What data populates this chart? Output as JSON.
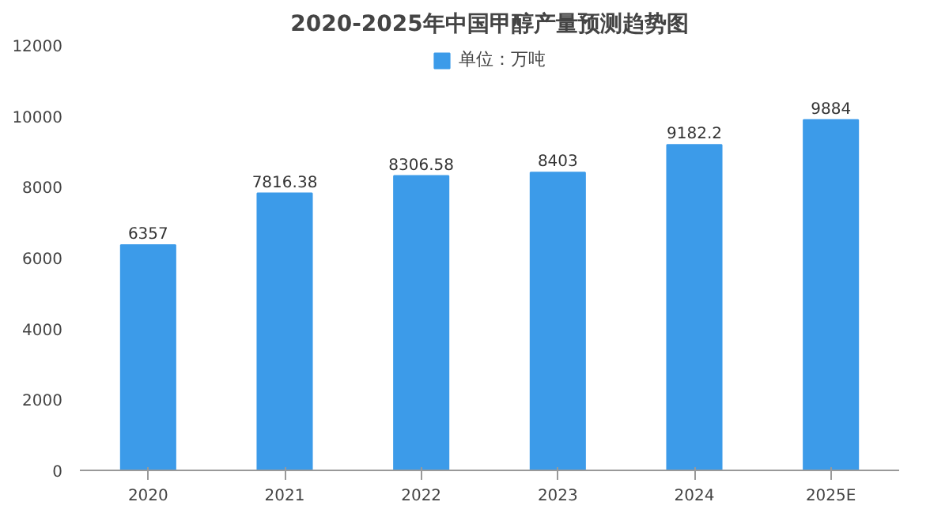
{
  "chart_data": {
    "type": "bar",
    "title": "2020-2025年中国甲醇产量预测趋势图",
    "categories": [
      "2020",
      "2021",
      "2022",
      "2023",
      "2024",
      "2025E"
    ],
    "series": [
      {
        "name": "单位：万吨",
        "color": "#3c9be9",
        "values": [
          6357,
          7816.38,
          8306.58,
          8403,
          9182.2,
          9884
        ]
      }
    ],
    "ylim": [
      0,
      12000
    ],
    "yticks": [
      0,
      2000,
      4000,
      6000,
      8000,
      10000,
      12000
    ],
    "data_labels": true,
    "legend": "top",
    "grid": false
  }
}
